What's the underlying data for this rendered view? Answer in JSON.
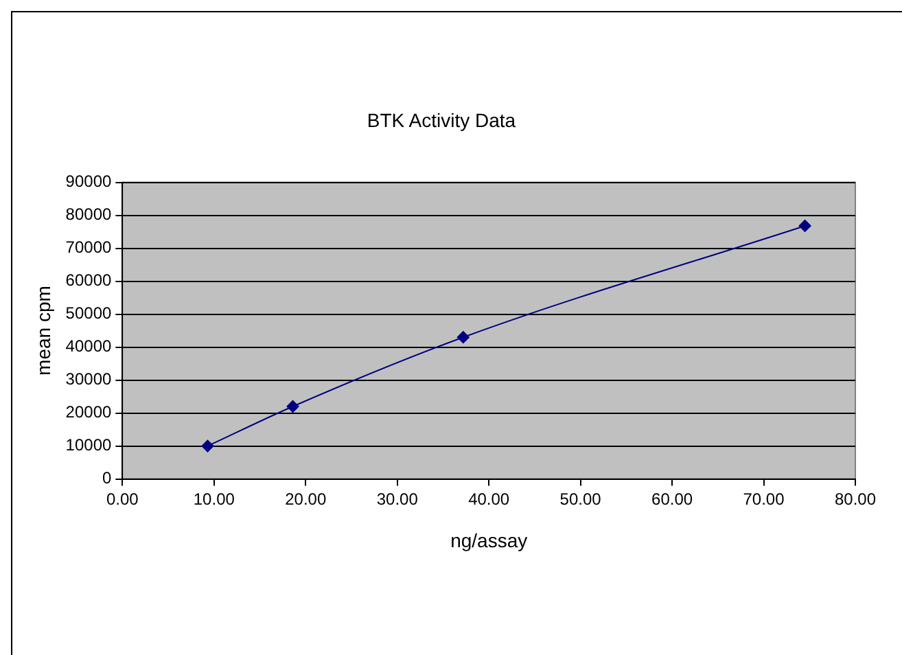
{
  "chart_data": {
    "type": "line",
    "title": "BTK Activity Data",
    "xlabel": "ng/assay",
    "ylabel": "mean cpm",
    "x": [
      9.3,
      18.6,
      37.2,
      74.5
    ],
    "series": [
      {
        "color": "#000080",
        "values": [
          10000,
          22000,
          43000,
          76800
        ]
      }
    ],
    "xlim": [
      0,
      80
    ],
    "xticks": [
      {
        "value": 0,
        "label": "0.00"
      },
      {
        "value": 10,
        "label": "10.00"
      },
      {
        "value": 20,
        "label": "20.00"
      },
      {
        "value": 30,
        "label": "30.00"
      },
      {
        "value": 40,
        "label": "40.00"
      },
      {
        "value": 50,
        "label": "50.00"
      },
      {
        "value": 60,
        "label": "60.00"
      },
      {
        "value": 70,
        "label": "70.00"
      },
      {
        "value": 80,
        "label": "80.00"
      }
    ],
    "ylim": [
      0,
      90000
    ],
    "yticks": [
      0,
      10000,
      20000,
      30000,
      40000,
      50000,
      60000,
      70000,
      80000,
      90000
    ],
    "grid": "y",
    "legend": false,
    "marker": "diamond",
    "line_style": "solid"
  }
}
